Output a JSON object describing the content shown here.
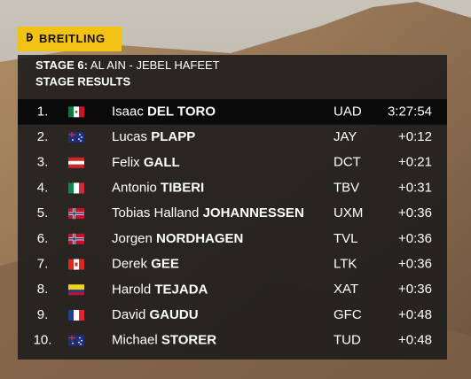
{
  "brand": "BREITLING",
  "header": {
    "stage": "STAGE 6:",
    "route": "AL AIN - JEBEL HAFEET",
    "title": "STAGE RESULTS"
  },
  "table": {
    "rows": [
      [
        "1.",
        "Isaac",
        "DEL TORO",
        "UAD",
        "3:27:54"
      ],
      [
        "2.",
        "Lucas",
        "PLAPP",
        "JAY",
        "+0:12"
      ],
      [
        "3.",
        "Felix",
        "GALL",
        "DCT",
        "+0:21"
      ],
      [
        "4.",
        "Antonio",
        "TIBERI",
        "TBV",
        "+0:31"
      ],
      [
        "5.",
        "Tobias Halland",
        "JOHANNESSEN",
        "UXM",
        "+0:36"
      ],
      [
        "6.",
        "Jorgen",
        "NORDHAGEN",
        "TVL",
        "+0:36"
      ],
      [
        "7.",
        "Derek",
        "GEE",
        "LTK",
        "+0:36"
      ],
      [
        "8.",
        "Harold",
        "TEJADA",
        "XAT",
        "+0:36"
      ],
      [
        "9.",
        "David",
        "GAUDU",
        "GFC",
        "+0:48"
      ],
      [
        "10.",
        "Michael",
        "STORER",
        "TUD",
        "+0:48"
      ]
    ]
  }
}
